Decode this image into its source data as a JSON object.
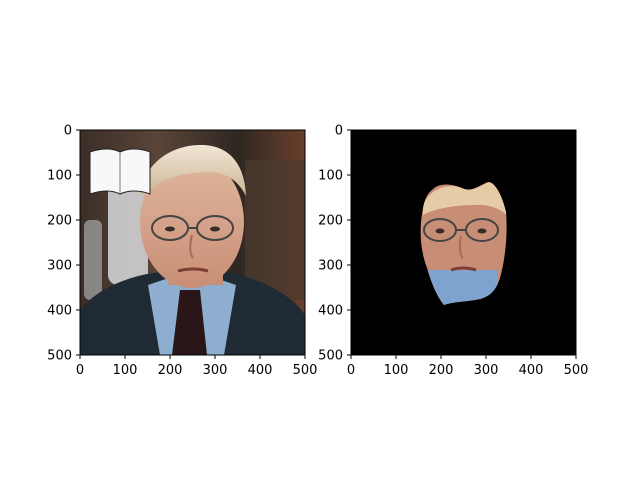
{
  "figure": {
    "background_color": "#ffffff",
    "panels": [
      {
        "id": "left",
        "description_type": "photo",
        "xticks": [
          "0",
          "100",
          "200",
          "300",
          "400",
          "500"
        ],
        "yticks": [
          "0",
          "100",
          "200",
          "300",
          "400",
          "500"
        ],
        "xlim": [
          0,
          500
        ],
        "ylim": [
          500,
          0
        ]
      },
      {
        "id": "right",
        "description_type": "segmented-face-mask",
        "xticks": [
          "0",
          "100",
          "200",
          "300",
          "400",
          "500"
        ],
        "yticks": [
          "0",
          "100",
          "200",
          "300",
          "400",
          "500"
        ],
        "xlim": [
          0,
          500
        ],
        "ylim": [
          500,
          0
        ],
        "mask_background_color": "#000000"
      }
    ]
  },
  "icons": {
    "overlay": "open-book-icon"
  }
}
